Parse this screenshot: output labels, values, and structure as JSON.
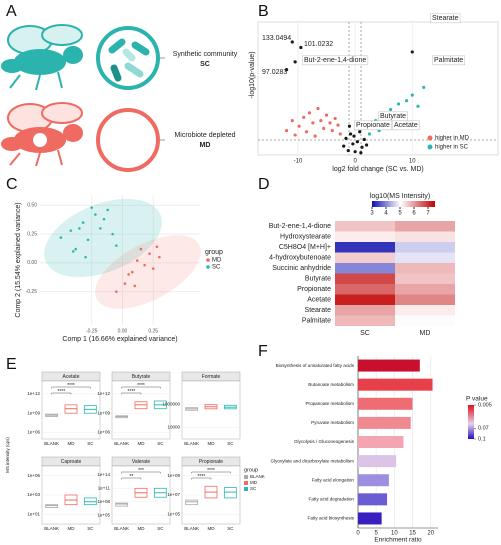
{
  "panel_a": {
    "label": "A",
    "top_caption": "Synthetic community",
    "top_group": "SC",
    "bottom_caption": "Microbiote depleted",
    "bottom_group": "MD"
  },
  "panel_b": {
    "label": "B",
    "type": "scatter",
    "xlabel": "log2 fold change (SC vs. MD)",
    "ylabel": "-log10(p-value)",
    "xlim": [
      -17,
      25
    ],
    "ylim": [
      0,
      12
    ],
    "xticks": [
      -10,
      0,
      10
    ],
    "series": [
      {
        "name": "higher in MD",
        "color": "#ef6a61",
        "x": [
          -12,
          -11,
          -10.5,
          -9.8,
          -9,
          -8.5,
          -8,
          -7.4,
          -7,
          -6.5,
          -6,
          -5.5,
          -5,
          -4.4,
          -4,
          -3.5,
          -3,
          -2.6
        ],
        "y": [
          2.2,
          3.1,
          1.8,
          2.6,
          3.4,
          2.1,
          3.8,
          2.9,
          1.7,
          4.2,
          3.1,
          2.4,
          3.6,
          2.9,
          2.2,
          3.3,
          2.7,
          1.9
        ]
      },
      {
        "name": "higher in SC",
        "color": "#2db8b3",
        "x": [
          2.5,
          3,
          3.6,
          4.2,
          5,
          5.5,
          6.2,
          7,
          7.6,
          8.3,
          9,
          10,
          11,
          12
        ],
        "y": [
          1.9,
          2.6,
          3.1,
          2.2,
          3.5,
          2.8,
          4.1,
          3.6,
          4.6,
          3.2,
          4.9,
          5.4,
          4.4,
          6.1
        ]
      },
      {
        "color": "#1a1a1a",
        "x": [
          -2,
          -1.6,
          -1.2,
          -0.8,
          -0.4,
          0,
          0.4,
          0.8,
          1.2,
          1.6,
          2,
          -1,
          0.6,
          -0.2,
          1,
          -11,
          -9.5,
          -10.5,
          -12,
          10,
          4.5,
          1,
          6
        ],
        "y": [
          0.8,
          1.5,
          0.4,
          1.9,
          1,
          0.3,
          1.2,
          2.1,
          0.7,
          1.4,
          0.9,
          2.6,
          2.9,
          1.7,
          0.2,
          10.2,
          9.7,
          8.4,
          7.7,
          9.3,
          3.3,
          2.8,
          3
        ]
      }
    ],
    "annotations": [
      "Stearate",
      "133.0494",
      "101.0232",
      "But-2-ene-1,4-dione",
      "97.0283",
      "Palmitate",
      "Butyrate",
      "Propionate",
      "Acetate"
    ]
  },
  "panel_c": {
    "label": "C",
    "type": "scatter",
    "xlabel": "Comp 1 (16.66% explained variance)",
    "ylabel": "Comp 2 (15.54% explained variance)",
    "xlim": [
      -0.67,
      0.63
    ],
    "ylim": [
      -0.54,
      0.59
    ],
    "xticks": [
      -0.25,
      {
        "value": 0,
        "label": "0.00"
      },
      0.25
    ],
    "yticks": [
      -0.25,
      {
        "value": 0,
        "label": "0.00"
      },
      0.25,
      {
        "value": 0.5,
        "label": "0.50"
      }
    ],
    "legend_title": "group",
    "series": [
      {
        "name": "MD",
        "color": "#ef6a61",
        "x": [
          0.02,
          0.08,
          0.12,
          0.18,
          0.22,
          0.25,
          0.3,
          0.1,
          0.05,
          0.15,
          -0.05,
          0.28
        ],
        "y": [
          -0.18,
          -0.08,
          0.02,
          -0.02,
          0.08,
          -0.05,
          0.05,
          -0.2,
          -0.1,
          0.12,
          -0.25,
          0.14
        ]
      },
      {
        "name": "SC",
        "color": "#2db8b3",
        "x": [
          -0.5,
          -0.42,
          -0.38,
          -0.32,
          -0.28,
          -0.22,
          -0.18,
          -0.12,
          -0.08,
          -0.3,
          -0.4,
          -0.15,
          -0.05,
          -0.25,
          -0.35
        ],
        "y": [
          0.22,
          0.28,
          0.12,
          0.35,
          0.2,
          0.42,
          0.3,
          0.46,
          0.25,
          0.05,
          0.1,
          0.38,
          0.15,
          0.48,
          0.3
        ]
      }
    ]
  },
  "panel_d": {
    "label": "D",
    "type": "heatmap",
    "colorbar_title": "log10(MS Intensity)",
    "colorbar_ticks": [
      3,
      4,
      5,
      6,
      7
    ],
    "zlim": [
      3,
      7.5
    ],
    "rows": [
      "But-2-ene-1,4-dione",
      "Hydroxystearate",
      "C5H8O4 [M+H]+",
      "4-hydroxybutenoate",
      "Succinic anhydride",
      "Butyrate",
      "Propionate",
      "Acetate",
      "Stearate",
      "Palmitate"
    ],
    "columns": [
      "SC",
      "MD"
    ],
    "values": [
      [
        5.6,
        5.9
      ],
      [
        5.2,
        5.3
      ],
      [
        3.3,
        4.6
      ],
      [
        5.5,
        4.8
      ],
      [
        4,
        5.7
      ],
      [
        6.8,
        5.6
      ],
      [
        6.5,
        5.9
      ],
      [
        7.2,
        6.2
      ],
      [
        5.9,
        5.2
      ],
      [
        5.7,
        5
      ]
    ]
  },
  "panel_e": {
    "label": "E",
    "type": "box",
    "ylabel": "MS intensity (cps)",
    "log_scale": true,
    "categories": [
      "BLANK",
      "MD",
      "SC"
    ],
    "colors": [
      "#aaaaaa",
      "#ef6a61",
      "#2db8b3"
    ],
    "legend_title": "group",
    "subplots": [
      {
        "title": "Acetate",
        "ylim": [
          100000,
          100000000000000
        ],
        "yticks": [
          {
            "value": 1000000000000,
            "label": "1e+12"
          },
          {
            "value": 1000000000,
            "label": "1e+09"
          },
          {
            "value": 1000000,
            "label": "1e+06"
          }
        ],
        "q1": [
          300000000,
          1000000000,
          1000000000
        ],
        "median": [
          500000000,
          5000000000,
          4000000000
        ],
        "q3": [
          700000000,
          20000000000,
          15000000000
        ],
        "significance": [
          "****",
          "****"
        ]
      },
      {
        "title": "Butyrate",
        "ylim": [
          100000,
          100000000000000
        ],
        "yticks": [
          {
            "value": 1000000000000,
            "label": "1e+12"
          },
          {
            "value": 1000000000,
            "label": "1e+09"
          },
          {
            "value": 1000000,
            "label": "1e+06"
          }
        ],
        "q1": [
          200000000,
          5000000000,
          5000000000
        ],
        "median": [
          300000000,
          20000000000,
          20000000000
        ],
        "q3": [
          400000000,
          60000000000,
          80000000000
        ],
        "significance": [
          "****",
          "****"
        ]
      },
      {
        "title": "Formate",
        "ylim": [
          1000,
          100000000
        ],
        "yticks": [
          1000000,
          10000
        ],
        "q1": [
          300000,
          400000,
          400000
        ],
        "median": [
          400000,
          600000,
          550000
        ],
        "q3": [
          500000,
          900000,
          800000
        ],
        "significance": []
      },
      {
        "title": "Caproate",
        "ylim": [
          1,
          1000000
        ],
        "yticks": [
          {
            "value": 100000,
            "label": "1e+05"
          },
          {
            "value": 1000,
            "label": "1e+03"
          },
          {
            "value": 10,
            "label": "1e+01"
          }
        ],
        "q1": [
          50,
          100,
          100
        ],
        "median": [
          80,
          300,
          200
        ],
        "q3": [
          100,
          1000,
          500
        ],
        "significance": []
      },
      {
        "title": "Valerate",
        "ylim": [
          1000,
          10000000000000000
        ],
        "yticks": [
          {
            "value": 100000000000000,
            "label": "1e+14"
          },
          {
            "value": 100000000000,
            "label": "1e+11"
          },
          {
            "value": 100000000,
            "label": "1e+08"
          },
          {
            "value": 100000,
            "label": "1e+05"
          }
        ],
        "q1": [
          10000000,
          1000000000,
          1000000000
        ],
        "median": [
          30000000,
          10000000000,
          10000000000
        ],
        "q3": [
          50000000,
          100000000000,
          100000000000
        ],
        "significance": [
          "**",
          "***"
        ]
      },
      {
        "title": "Propionate",
        "ylim": [
          10000,
          10000000000
        ],
        "yticks": [
          {
            "value": 1000000000,
            "label": "1e+09"
          },
          {
            "value": 10000000,
            "label": "1e+07"
          },
          {
            "value": 100000,
            "label": "1e+05"
          }
        ],
        "q1": [
          1000000,
          5000000,
          5000000
        ],
        "median": [
          2000000,
          20000000,
          20000000
        ],
        "q3": [
          3000000,
          80000000,
          60000000
        ],
        "significance": [
          "****",
          "****"
        ]
      }
    ]
  },
  "panel_f": {
    "label": "F",
    "type": "bar",
    "orientation": "horizontal",
    "xlabel": "Enrichment ratio",
    "xlim": [
      0,
      22
    ],
    "xticks": [
      0,
      5,
      10,
      15,
      20
    ],
    "categories": [
      "Biosynthesis of unsaturated fatty acids",
      "Butanoate metabolism",
      "Propanoate metabolism",
      "Pyruvate metabolism",
      "Glycolysis / Gluconeogenesis",
      "Glyoxylate and dicarboxylate metabolism",
      "Fatty acid elongation",
      "Fatty acid degradation",
      "Fatty acid biosynthesis"
    ],
    "values": [
      17,
      20.5,
      15,
      14.5,
      12.5,
      10.5,
      8.5,
      8,
      6.5
    ],
    "colors": [
      "#c8102e",
      "#e8404a",
      "#ee6d72",
      "#f08a90",
      "#f3a6b2",
      "#dcc3e8",
      "#9d8fe0",
      "#6a5cd2",
      "#3a1fc0"
    ],
    "legend_title": "P value",
    "legend_ticks": [
      0.005,
      0.07,
      0.1
    ]
  }
}
